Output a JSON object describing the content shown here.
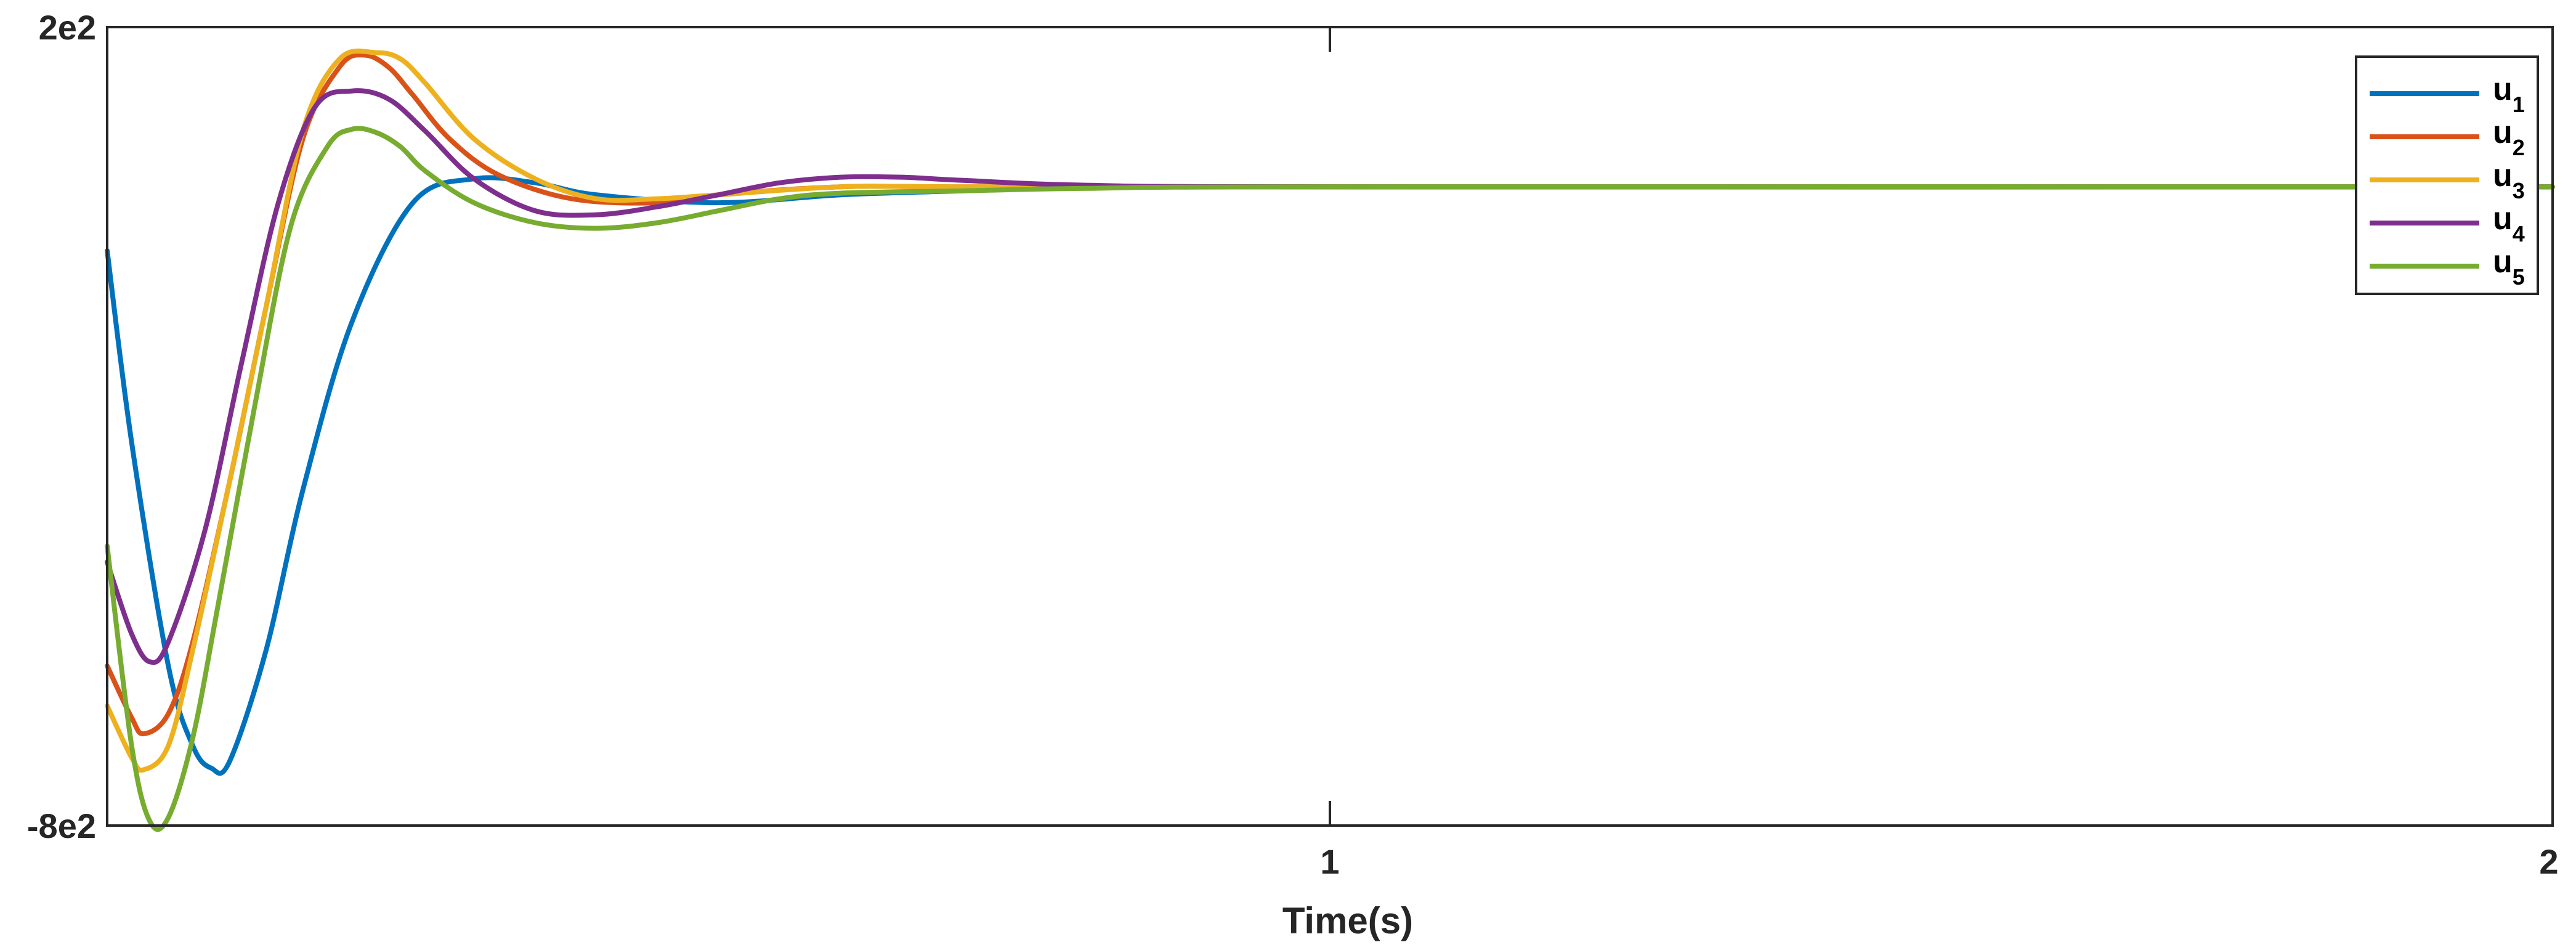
{
  "chart_data": {
    "type": "line",
    "title": "",
    "xlabel": "Time(s)",
    "ylabel": "",
    "xlim": [
      0,
      2
    ],
    "ylim": [
      -800,
      200
    ],
    "x_ticks": [
      1,
      2
    ],
    "x_tick_labels": [
      "1",
      "2"
    ],
    "y_ticks": [
      -800,
      200
    ],
    "y_tick_labels": [
      "-8e2",
      "2e2"
    ],
    "grid": false,
    "legend_position": "top-right",
    "series": [
      {
        "name": "u",
        "subscript": "1",
        "color": "#0072BD",
        "x": [
          0.0,
          0.02,
          0.05,
          0.07,
          0.085,
          0.1,
          0.13,
          0.16,
          0.2,
          0.25,
          0.3,
          0.35,
          0.4,
          0.5,
          0.6,
          0.7,
          0.8,
          1.0,
          2.0
        ],
        "y": [
          -80,
          -320,
          -600,
          -700,
          -728,
          -720,
          -580,
          -380,
          -170,
          -20,
          10,
          5,
          -10,
          -20,
          -10,
          -5,
          0,
          0,
          0
        ]
      },
      {
        "name": "u",
        "subscript": "2",
        "color": "#D95319",
        "x": [
          0.0,
          0.02,
          0.03,
          0.05,
          0.07,
          0.1,
          0.13,
          0.16,
          0.19,
          0.21,
          0.23,
          0.25,
          0.28,
          0.32,
          0.38,
          0.45,
          0.5,
          0.6,
          0.7,
          1.0,
          2.0
        ],
        "y": [
          -600,
          -665,
          -685,
          -660,
          -570,
          -370,
          -150,
          60,
          150,
          165,
          150,
          115,
          60,
          15,
          -15,
          -20,
          -10,
          0,
          0,
          0,
          0
        ]
      },
      {
        "name": "u",
        "subscript": "3",
        "color": "#EDB120",
        "x": [
          0.0,
          0.02,
          0.03,
          0.05,
          0.07,
          0.1,
          0.13,
          0.16,
          0.19,
          0.22,
          0.24,
          0.26,
          0.3,
          0.35,
          0.4,
          0.45,
          0.5,
          0.6,
          0.7,
          1.0,
          2.0
        ],
        "y": [
          -650,
          -715,
          -730,
          -700,
          -580,
          -370,
          -150,
          70,
          160,
          168,
          160,
          130,
          60,
          10,
          -15,
          -15,
          -10,
          0,
          0,
          0,
          0
        ]
      },
      {
        "name": "u",
        "subscript": "4",
        "color": "#7E2F8E",
        "x": [
          0.0,
          0.02,
          0.035,
          0.05,
          0.08,
          0.11,
          0.14,
          0.17,
          0.2,
          0.23,
          0.26,
          0.3,
          0.35,
          0.4,
          0.45,
          0.5,
          0.55,
          0.6,
          0.65,
          0.7,
          0.8,
          1.0,
          2.0
        ],
        "y": [
          -470,
          -560,
          -595,
          -570,
          -430,
          -220,
          -20,
          100,
          120,
          110,
          70,
          10,
          -30,
          -35,
          -25,
          -10,
          5,
          12,
          12,
          8,
          2,
          0,
          0
        ]
      },
      {
        "name": "u",
        "subscript": "5",
        "color": "#77AC30",
        "x": [
          0.0,
          0.02,
          0.035,
          0.05,
          0.07,
          0.09,
          0.12,
          0.15,
          0.18,
          0.2,
          0.22,
          0.24,
          0.26,
          0.3,
          0.35,
          0.4,
          0.45,
          0.5,
          0.55,
          0.6,
          0.7,
          0.8,
          1.0,
          2.0
        ],
        "y": [
          -450,
          -700,
          -795,
          -790,
          -690,
          -530,
          -280,
          -50,
          50,
          72,
          68,
          50,
          20,
          -20,
          -45,
          -52,
          -45,
          -30,
          -15,
          -8,
          -5,
          -2,
          0,
          0
        ]
      }
    ]
  }
}
